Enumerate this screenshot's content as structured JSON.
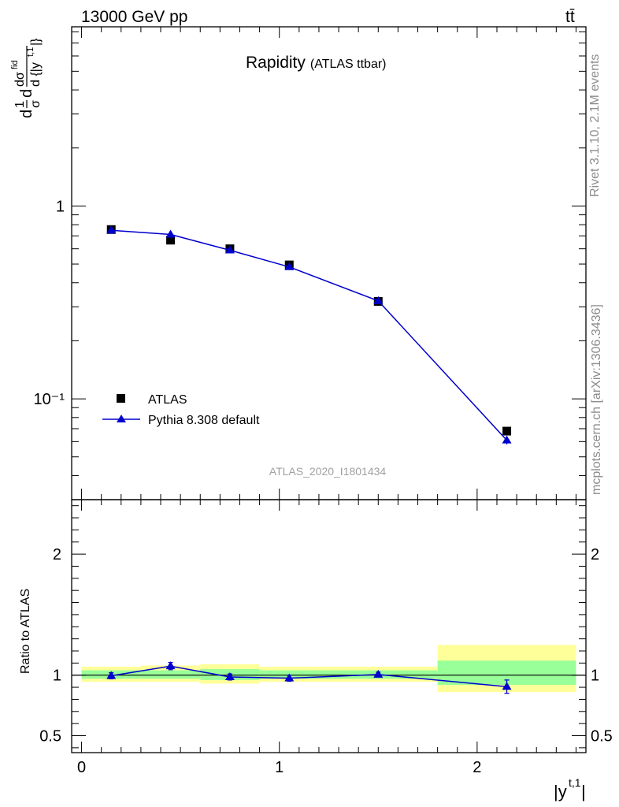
{
  "header": {
    "energy_label": "13000 GeV pp",
    "process_label": "tt̄",
    "side_label": "Rivet 3.1.10,  2.1M events",
    "site_label": "mcplots.cern.ch [arXiv:1306.3436]",
    "title_main": "Rapidity",
    "title_sub": "(ATLAS ttbar)",
    "analysis_id": "ATLAS_2020_I1801434"
  },
  "colors": {
    "data_marker": "#000000",
    "mc_line": "#0000cc",
    "band_inner": "#99ff99",
    "band_outer": "#ffff99"
  },
  "chart_data": [
    {
      "type": "scatter",
      "panel": "main",
      "y_scale": "log",
      "ylabel": "d 1/σ dσ^{fid} / d {|y^{t,1}|}",
      "x_ticks": [
        "0",
        "1",
        "2"
      ],
      "y_ticks": [
        "1",
        "10⁻¹"
      ],
      "xlim": [
        -0.05,
        2.55
      ],
      "ylim": [
        0.03,
        8.5
      ],
      "legend_position": "bottom-left",
      "series": [
        {
          "name": "ATLAS",
          "marker": "square",
          "points": [
            {
              "x": 0.15,
              "y": 0.755
            },
            {
              "x": 0.45,
              "y": 0.665
            },
            {
              "x": 0.75,
              "y": 0.6
            },
            {
              "x": 1.05,
              "y": 0.495
            },
            {
              "x": 1.5,
              "y": 0.32
            },
            {
              "x": 2.15,
              "y": 0.068
            }
          ]
        },
        {
          "name": "Pythia 8.308 default",
          "marker": "triangle",
          "points": [
            {
              "x": 0.15,
              "y": 0.748,
              "err": 0.008
            },
            {
              "x": 0.45,
              "y": 0.712,
              "err": 0.008
            },
            {
              "x": 0.75,
              "y": 0.59,
              "err": 0.007
            },
            {
              "x": 1.05,
              "y": 0.483,
              "err": 0.006
            },
            {
              "x": 1.5,
              "y": 0.322,
              "err": 0.004
            },
            {
              "x": 2.15,
              "y": 0.061,
              "err": 0.003
            }
          ]
        }
      ]
    },
    {
      "type": "line",
      "panel": "ratio",
      "ylabel": "Ratio to ATLAS",
      "xlabel": "|y^{t,1}|",
      "x_ticks": [
        "0",
        "1",
        "2"
      ],
      "y_ticks": [
        "0.5",
        "1",
        "2"
      ],
      "xlim": [
        -0.05,
        2.55
      ],
      "ylim": [
        0.36,
        2.45
      ],
      "reference_line": 1.0,
      "bands": [
        {
          "x0": 0.0,
          "x1": 0.3,
          "inner": [
            0.97,
            1.04
          ],
          "outer": [
            0.945,
            1.07
          ]
        },
        {
          "x0": 0.3,
          "x1": 0.6,
          "inner": [
            0.97,
            1.04
          ],
          "outer": [
            0.945,
            1.08
          ]
        },
        {
          "x0": 0.6,
          "x1": 0.9,
          "inner": [
            0.96,
            1.05
          ],
          "outer": [
            0.93,
            1.09
          ]
        },
        {
          "x0": 0.9,
          "x1": 1.2,
          "inner": [
            0.97,
            1.04
          ],
          "outer": [
            0.945,
            1.07
          ]
        },
        {
          "x0": 1.2,
          "x1": 1.8,
          "inner": [
            0.97,
            1.04
          ],
          "outer": [
            0.945,
            1.07
          ]
        },
        {
          "x0": 1.8,
          "x1": 2.5,
          "inner": [
            0.92,
            1.12
          ],
          "outer": [
            0.86,
            1.25
          ]
        }
      ],
      "series": [
        {
          "name": "Pythia 8.308 default",
          "points": [
            {
              "x": 0.15,
              "y": 0.995,
              "err": 0.025
            },
            {
              "x": 0.45,
              "y": 1.075,
              "err": 0.03
            },
            {
              "x": 0.75,
              "y": 0.985,
              "err": 0.025
            },
            {
              "x": 1.05,
              "y": 0.975,
              "err": 0.025
            },
            {
              "x": 1.5,
              "y": 1.005,
              "err": 0.02
            },
            {
              "x": 2.15,
              "y": 0.905,
              "err": 0.055
            }
          ]
        }
      ]
    }
  ]
}
